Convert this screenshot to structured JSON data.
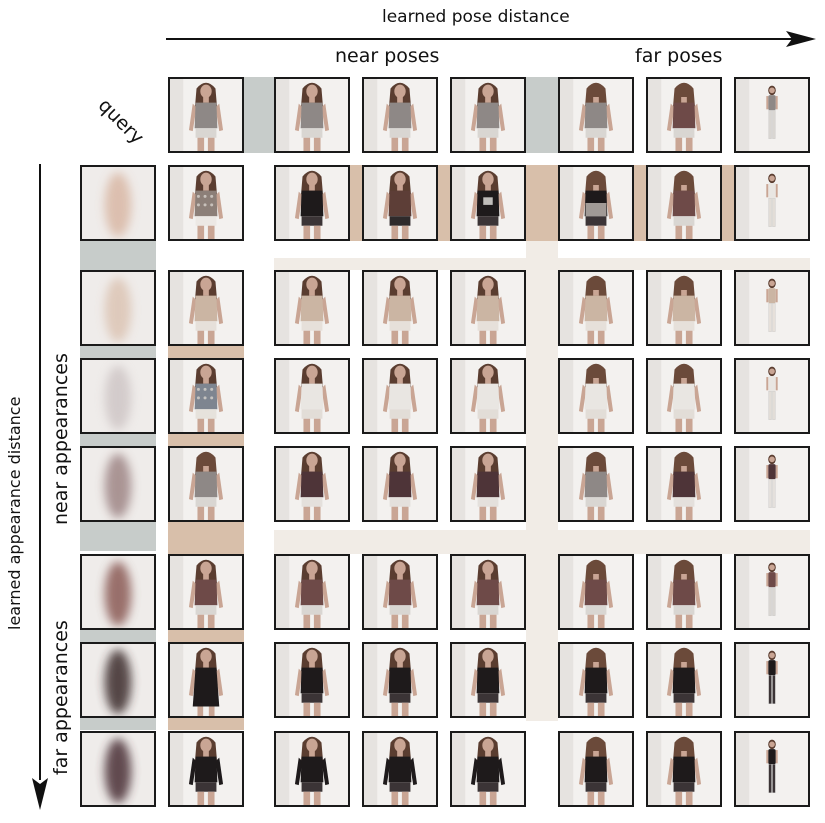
{
  "labels": {
    "top_axis": "learned pose distance",
    "near_poses": "near poses",
    "far_poses": "far poses",
    "query": "query",
    "left_axis": "learned appearance distance",
    "near_appearances": "near appearances",
    "far_appearances": "far appearances"
  },
  "colors": {
    "axis": "#111111",
    "border": "#1a1a1a",
    "tan_band": "#d8bfaa",
    "gray_band": "#c7ccca",
    "cream_band": "#f1ece6",
    "backdrop": "#f3f1ef"
  },
  "grid": {
    "pose_columns": 7,
    "appearance_rows": 7
  },
  "query_row": {
    "outfits": [
      "gray-tank",
      "gray-tank",
      "gray-tank",
      "gray-tank",
      "gray-back",
      "mauve-back",
      "gray-tank"
    ],
    "poses": [
      "front",
      "front",
      "front",
      "front",
      "back",
      "back",
      "full-body"
    ]
  },
  "query_column": {
    "blurs": [
      "#d9b8a5",
      "#dcc4b4",
      "#cfc6c6",
      "#9e8585",
      "#8a5a55",
      "#3a2a2c",
      "#4a2f35"
    ]
  },
  "rows": [
    {
      "outfits": [
        "floral-tank",
        "black-tee",
        "brown-drape",
        "black-graphic",
        "black-back-lace",
        "mauve-blouse",
        "white-shirt"
      ]
    },
    {
      "outfits": [
        "beige-tank",
        "beige-tank",
        "beige-tank",
        "beige-tank",
        "beige-back",
        "beige-back",
        "beige-tank"
      ]
    },
    {
      "outfits": [
        "patterned-tank",
        "white-tank",
        "white-tank",
        "white-tank",
        "white-back",
        "white-back",
        "white-tank"
      ]
    },
    {
      "outfits": [
        "gray-back",
        "plum-tank",
        "plum-tank",
        "plum-tank",
        "gray-back",
        "plum-back",
        "plum-tank"
      ]
    },
    {
      "outfits": [
        "mauve-tank",
        "mauve-tank",
        "mauve-tank",
        "mauve-tank",
        "mauve-back",
        "mauve-back",
        "mauve-tank"
      ]
    },
    {
      "outfits": [
        "black-dress",
        "black-tank",
        "black-tank",
        "black-tank",
        "black-back",
        "black-back",
        "black-dress"
      ]
    },
    {
      "outfits": [
        "black-longsleeve",
        "black-longsleeve",
        "black-longsleeve",
        "black-longsleeve",
        "black-back",
        "black-back",
        "black-longsleeve"
      ]
    }
  ]
}
